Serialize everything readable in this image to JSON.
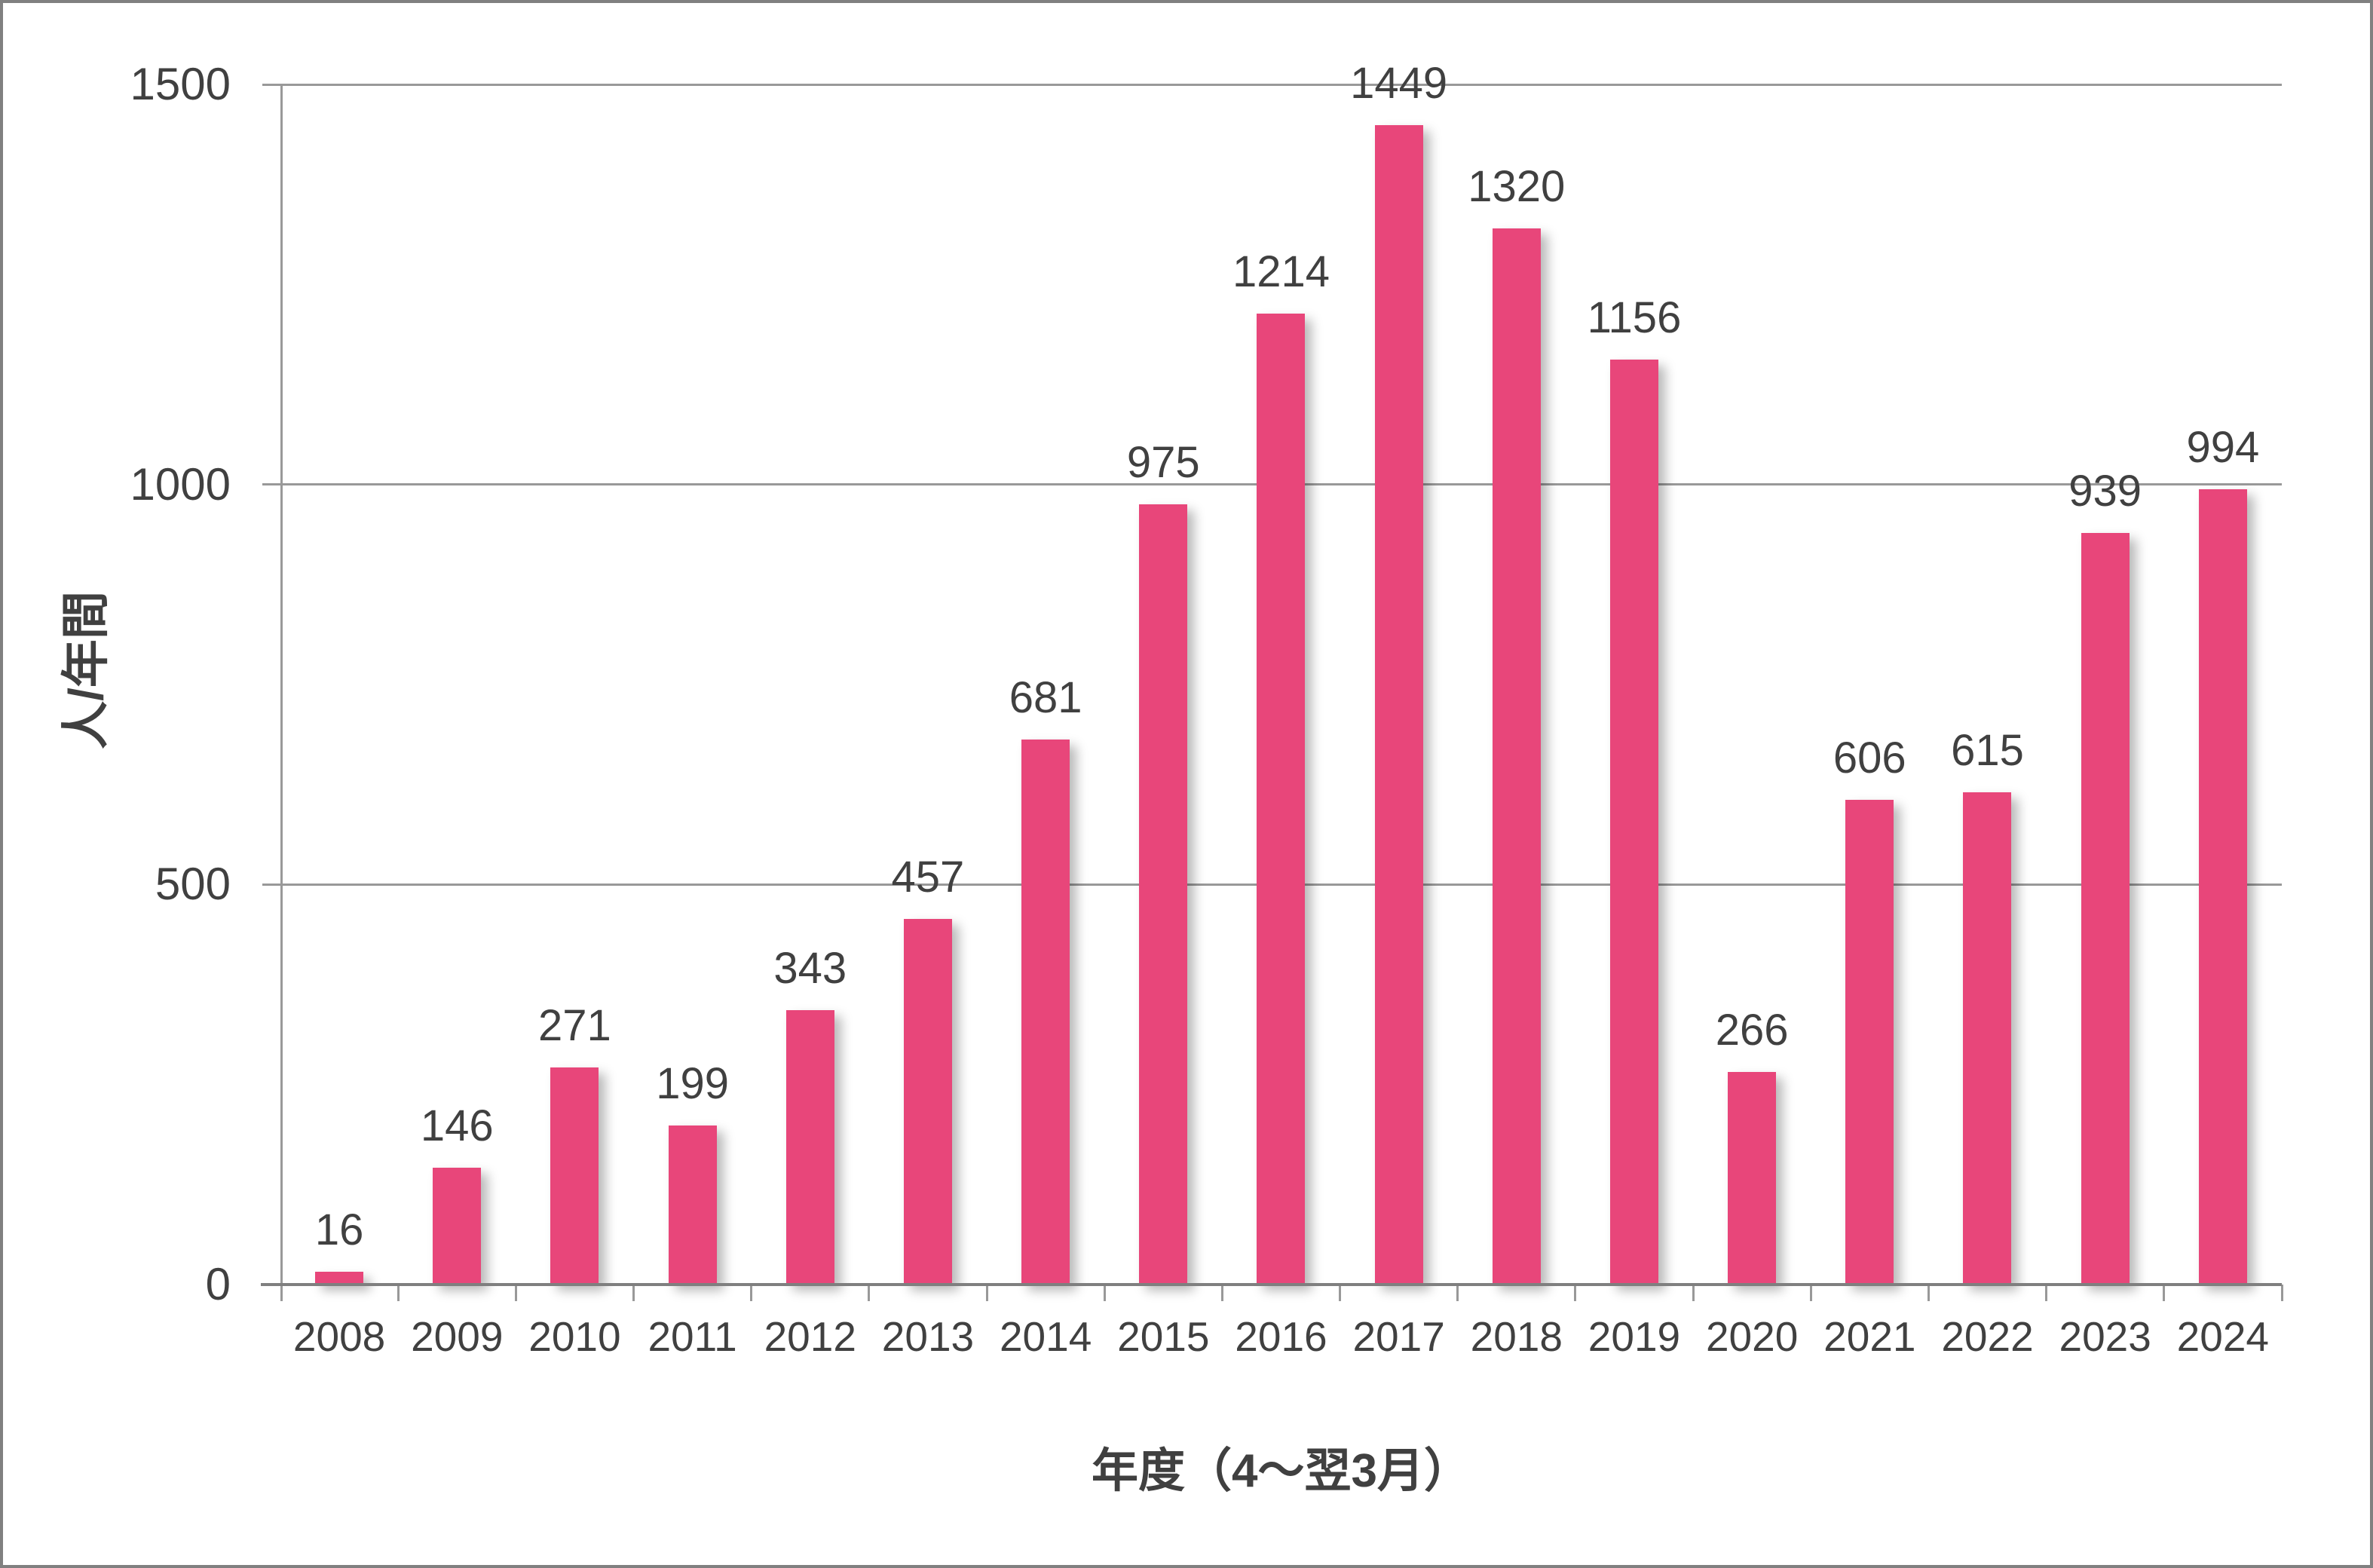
{
  "chart_data": {
    "type": "bar",
    "title": "",
    "xlabel": "年度（4～翌3月）",
    "ylabel": "人/年間",
    "categories": [
      "2008",
      "2009",
      "2010",
      "2011",
      "2012",
      "2013",
      "2014",
      "2015",
      "2016",
      "2017",
      "2018",
      "2019",
      "2020",
      "2021",
      "2022",
      "2023",
      "2024"
    ],
    "values": [
      16,
      146,
      271,
      199,
      343,
      457,
      681,
      975,
      1214,
      1449,
      1320,
      1156,
      266,
      606,
      615,
      939,
      994
    ],
    "ylim": [
      0,
      1500
    ],
    "yticks": [
      0,
      500,
      1000,
      1500
    ],
    "grid": "horizontal-major",
    "legend": "none",
    "data_labels": true
  },
  "colors": {
    "bar": "#E8467A",
    "text": "#404040",
    "gridline": "#999999",
    "axis": "#7F7F7F",
    "frame_border": "#808080",
    "background": "#FFFFFF"
  }
}
